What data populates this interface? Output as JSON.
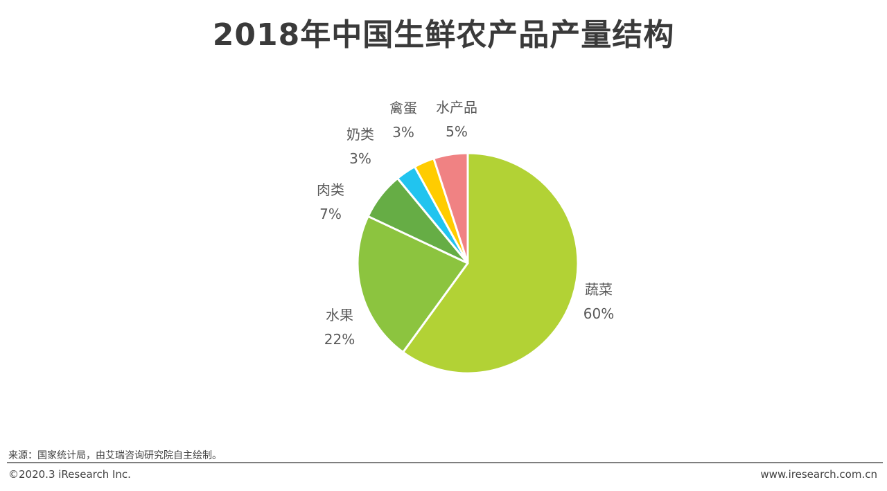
{
  "title": "2018年中国生鲜农产品产量结构",
  "chart_data": {
    "type": "pie",
    "title": "2018年中国生鲜农产品产量结构",
    "start": "12 o'clock",
    "direction": "clockwise",
    "slices": [
      {
        "label": "蔬菜",
        "value": 60,
        "display": "60%",
        "color": "#b2d235"
      },
      {
        "label": "水果",
        "value": 22,
        "display": "22%",
        "color": "#8cc43f"
      },
      {
        "label": "肉类",
        "value": 7,
        "display": "7%",
        "color": "#66ad45"
      },
      {
        "label": "奶类",
        "value": 3,
        "display": "3%",
        "color": "#21c4ef"
      },
      {
        "label": "禽蛋",
        "value": 3,
        "display": "3%",
        "color": "#ffcc00"
      },
      {
        "label": "水产品",
        "value": 5,
        "display": "5%",
        "color": "#f08283"
      }
    ]
  },
  "footer": {
    "source": "来源：国家统计局，由艾瑞咨询研究院自主绘制。",
    "copyright": "©2020.3 iResearch Inc.",
    "website": "www.iresearch.com.cn"
  }
}
